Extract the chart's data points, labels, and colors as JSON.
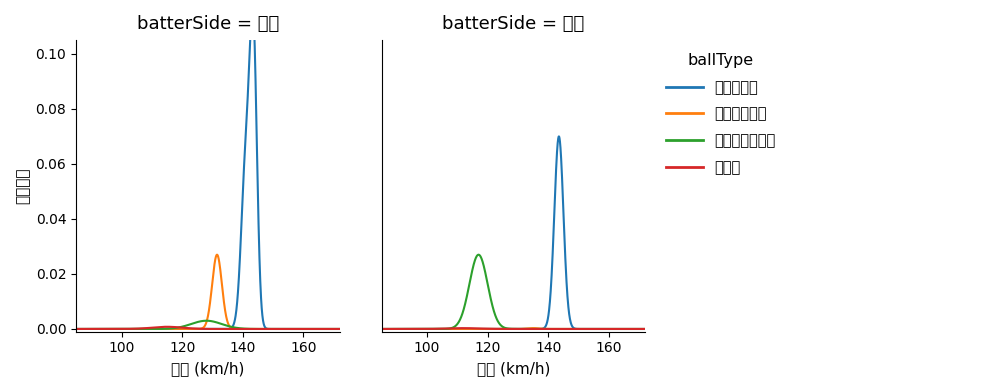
{
  "left_title": "batterSide = 左打",
  "right_title": "batterSide = 右打",
  "ylabel": "確率密度",
  "xlabel": "球速 (km/h)",
  "legend_title": "ballType",
  "ball_types": [
    "ストレート",
    "カットボール",
    "チェンジアップ",
    "カーブ"
  ],
  "colors": [
    "#1f77b4",
    "#ff7f0e",
    "#2ca02c",
    "#d62728"
  ],
  "xlim": [
    85,
    172
  ],
  "xticks": [
    100,
    120,
    140,
    160
  ],
  "ylim": [
    -0.001,
    0.105
  ],
  "yticks": [
    0.0,
    0.02,
    0.04,
    0.06,
    0.08,
    0.1
  ],
  "left": {
    "straight": [
      {
        "mean": 141.0,
        "std": 1.5,
        "amp": 0.06
      },
      {
        "mean": 143.5,
        "std": 1.2,
        "amp": 0.1
      }
    ],
    "cutter": [
      {
        "mean": 131.5,
        "std": 1.6,
        "amp": 0.027
      }
    ],
    "changeup": [
      {
        "mean": 128.0,
        "std": 5.0,
        "amp": 0.003
      }
    ],
    "curve": [
      {
        "mean": 115.0,
        "std": 5.0,
        "amp": 0.0008
      }
    ]
  },
  "right": {
    "straight": [
      {
        "mean": 143.5,
        "std": 1.5,
        "amp": 0.07
      }
    ],
    "cutter": [
      {
        "mean": 135.0,
        "std": 2.0,
        "amp": 0.0003
      }
    ],
    "changeup": [
      {
        "mean": 117.0,
        "std": 3.0,
        "amp": 0.027
      }
    ],
    "curve": [
      {
        "mean": 112.0,
        "std": 5.0,
        "amp": 0.0003
      }
    ]
  }
}
